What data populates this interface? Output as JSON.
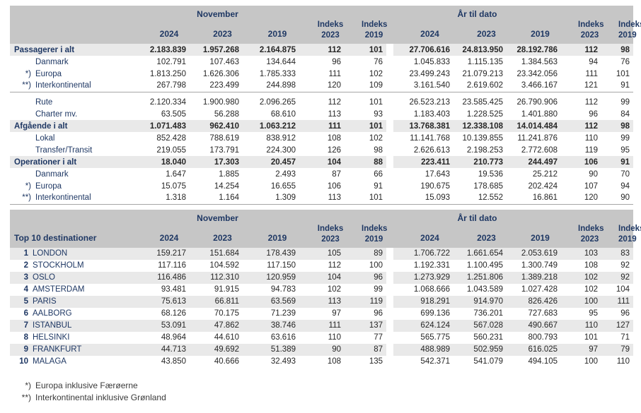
{
  "colors": {
    "header_band": "#c6c6c6",
    "shaded_row": "#e9e9e9",
    "navy_text": "#1f3864",
    "number_text": "#262626",
    "separator_line": "#a6a6a6"
  },
  "columns": {
    "month": "November",
    "ytd": "År til dato",
    "years": [
      "2024",
      "2023",
      "2019"
    ],
    "indeks": "Indeks",
    "idx_years": [
      "2023",
      "2019"
    ]
  },
  "traffic_table": {
    "rows": [
      {
        "marker": "",
        "label": "Passagerer i alt",
        "style": "section",
        "sep_after": false,
        "nov": [
          "2.183.839",
          "1.957.268",
          "2.164.875",
          "112",
          "101"
        ],
        "ytd": [
          "27.706.616",
          "24.813.950",
          "28.192.786",
          "112",
          "98"
        ]
      },
      {
        "marker": "",
        "label": "Danmark",
        "style": "sub",
        "sep_after": false,
        "nov": [
          "102.791",
          "107.463",
          "134.644",
          "96",
          "76"
        ],
        "ytd": [
          "1.045.833",
          "1.115.135",
          "1.384.563",
          "94",
          "76"
        ]
      },
      {
        "marker": "*)",
        "label": "Europa",
        "style": "sub",
        "sep_after": false,
        "nov": [
          "1.813.250",
          "1.626.306",
          "1.785.333",
          "111",
          "102"
        ],
        "ytd": [
          "23.499.243",
          "21.079.213",
          "23.342.056",
          "111",
          "101"
        ]
      },
      {
        "marker": "**)",
        "label": "Interkontinental",
        "style": "sub",
        "sep_after": true,
        "nov": [
          "267.798",
          "223.499",
          "244.898",
          "120",
          "109"
        ],
        "ytd": [
          "3.161.540",
          "2.619.602",
          "3.466.167",
          "121",
          "91"
        ]
      },
      {
        "marker": "",
        "label": "Rute",
        "style": "sub",
        "sep_after": false,
        "nov": [
          "2.120.334",
          "1.900.980",
          "2.096.265",
          "112",
          "101"
        ],
        "ytd": [
          "26.523.213",
          "23.585.425",
          "26.790.906",
          "112",
          "99"
        ]
      },
      {
        "marker": "",
        "label": "Charter mv.",
        "style": "sub",
        "sep_after": false,
        "nov": [
          "63.505",
          "56.288",
          "68.610",
          "113",
          "93"
        ],
        "ytd": [
          "1.183.403",
          "1.228.525",
          "1.401.880",
          "96",
          "84"
        ]
      },
      {
        "marker": "",
        "label": "Afgående i alt",
        "style": "section",
        "sep_after": false,
        "nov": [
          "1.071.483",
          "962.410",
          "1.063.212",
          "111",
          "101"
        ],
        "ytd": [
          "13.768.381",
          "12.338.108",
          "14.014.484",
          "112",
          "98"
        ]
      },
      {
        "marker": "",
        "label": "Lokal",
        "style": "sub",
        "sep_after": false,
        "nov": [
          "852.428",
          "788.619",
          "838.912",
          "108",
          "102"
        ],
        "ytd": [
          "11.141.768",
          "10.139.855",
          "11.241.876",
          "110",
          "99"
        ]
      },
      {
        "marker": "",
        "label": "Transfer/Transit",
        "style": "sub",
        "sep_after": false,
        "nov": [
          "219.055",
          "173.791",
          "224.300",
          "126",
          "98"
        ],
        "ytd": [
          "2.626.613",
          "2.198.253",
          "2.772.608",
          "119",
          "95"
        ]
      },
      {
        "marker": "",
        "label": "Operationer i alt",
        "style": "section",
        "sep_after": false,
        "nov": [
          "18.040",
          "17.303",
          "20.457",
          "104",
          "88"
        ],
        "ytd": [
          "223.411",
          "210.773",
          "244.497",
          "106",
          "91"
        ]
      },
      {
        "marker": "",
        "label": "Danmark",
        "style": "sub",
        "sep_after": false,
        "nov": [
          "1.647",
          "1.885",
          "2.493",
          "87",
          "66"
        ],
        "ytd": [
          "17.643",
          "19.536",
          "25.212",
          "90",
          "70"
        ]
      },
      {
        "marker": "*)",
        "label": "Europa",
        "style": "sub",
        "sep_after": false,
        "nov": [
          "15.075",
          "14.254",
          "16.655",
          "106",
          "91"
        ],
        "ytd": [
          "190.675",
          "178.685",
          "202.424",
          "107",
          "94"
        ]
      },
      {
        "marker": "**)",
        "label": "Interkontinental",
        "style": "sub",
        "sep_after": false,
        "nov": [
          "1.318",
          "1.164",
          "1.309",
          "113",
          "101"
        ],
        "ytd": [
          "15.093",
          "12.552",
          "16.861",
          "120",
          "90"
        ]
      }
    ]
  },
  "top10_table": {
    "title": "Top 10 destinationer",
    "rows": [
      {
        "rank": "1",
        "label": "LONDON",
        "nov": [
          "159.217",
          "151.684",
          "178.439",
          "105",
          "89"
        ],
        "ytd": [
          "1.706.722",
          "1.661.654",
          "2.053.619",
          "103",
          "83"
        ]
      },
      {
        "rank": "2",
        "label": "STOCKHOLM",
        "nov": [
          "117.116",
          "104.592",
          "117.150",
          "112",
          "100"
        ],
        "ytd": [
          "1.192.331",
          "1.100.495",
          "1.300.749",
          "108",
          "92"
        ]
      },
      {
        "rank": "3",
        "label": "OSLO",
        "nov": [
          "116.486",
          "112.310",
          "120.959",
          "104",
          "96"
        ],
        "ytd": [
          "1.273.929",
          "1.251.806",
          "1.389.218",
          "102",
          "92"
        ]
      },
      {
        "rank": "4",
        "label": "AMSTERDAM",
        "nov": [
          "93.481",
          "91.915",
          "94.783",
          "102",
          "99"
        ],
        "ytd": [
          "1.068.666",
          "1.043.589",
          "1.027.428",
          "102",
          "104"
        ]
      },
      {
        "rank": "5",
        "label": "PARIS",
        "nov": [
          "75.613",
          "66.811",
          "63.569",
          "113",
          "119"
        ],
        "ytd": [
          "918.291",
          "914.970",
          "826.426",
          "100",
          "111"
        ]
      },
      {
        "rank": "6",
        "label": "AALBORG",
        "nov": [
          "68.126",
          "70.175",
          "71.239",
          "97",
          "96"
        ],
        "ytd": [
          "699.136",
          "736.201",
          "727.683",
          "95",
          "96"
        ]
      },
      {
        "rank": "7",
        "label": "ISTANBUL",
        "nov": [
          "53.091",
          "47.862",
          "38.746",
          "111",
          "137"
        ],
        "ytd": [
          "624.124",
          "567.028",
          "490.667",
          "110",
          "127"
        ]
      },
      {
        "rank": "8",
        "label": "HELSINKI",
        "nov": [
          "48.964",
          "44.610",
          "63.616",
          "110",
          "77"
        ],
        "ytd": [
          "565.775",
          "560.231",
          "800.793",
          "101",
          "71"
        ]
      },
      {
        "rank": "9",
        "label": "FRANKFURT",
        "nov": [
          "44.713",
          "49.692",
          "51.389",
          "90",
          "87"
        ],
        "ytd": [
          "488.989",
          "502.959",
          "616.025",
          "97",
          "79"
        ]
      },
      {
        "rank": "10",
        "label": "MALAGA",
        "nov": [
          "43.850",
          "40.666",
          "32.493",
          "108",
          "135"
        ],
        "ytd": [
          "542.371",
          "541.079",
          "494.105",
          "100",
          "110"
        ]
      }
    ]
  },
  "footnotes": [
    {
      "marker": "*)",
      "text": "Europa inklusive Færøerne"
    },
    {
      "marker": "**)",
      "text": "Interkontinental inklusive Grønland"
    }
  ]
}
